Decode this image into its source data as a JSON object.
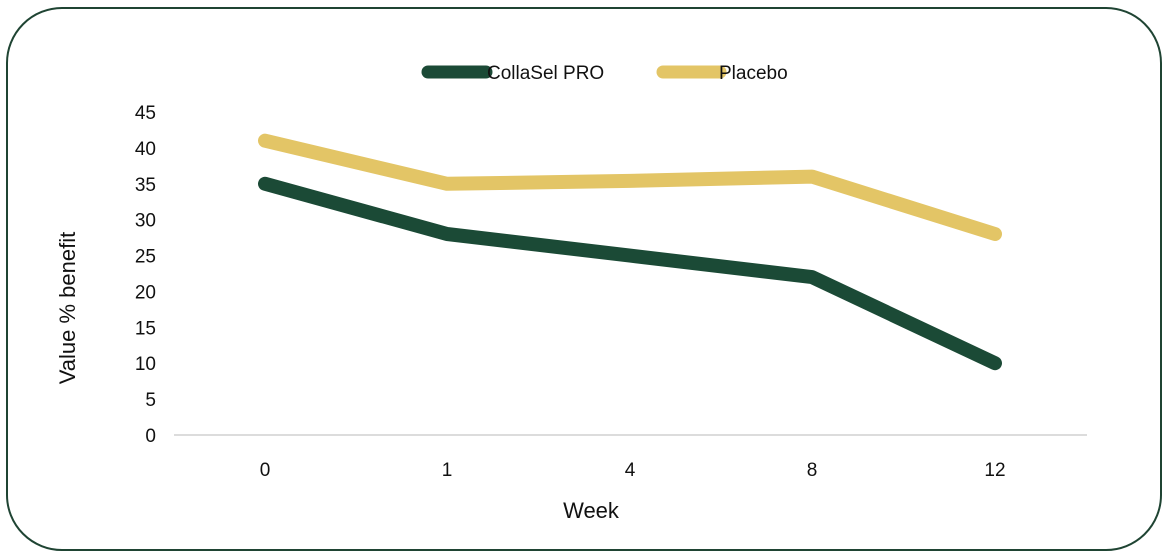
{
  "chart_data": {
    "type": "line",
    "title": "",
    "xlabel": "Week",
    "ylabel": "Value % benefit",
    "categories": [
      "0",
      "1",
      "4",
      "8",
      "12"
    ],
    "ylim": [
      0,
      45
    ],
    "yticks": [
      "0",
      "5",
      "10",
      "15",
      "20",
      "25",
      "30",
      "35",
      "40",
      "45"
    ],
    "grid": false,
    "legend_position": "top",
    "series": [
      {
        "name": "CollaSel PRO",
        "color": "#1b4a36",
        "values": [
          35,
          28,
          25,
          22,
          10
        ]
      },
      {
        "name": "Placebo",
        "color": "#e3c566",
        "values": [
          41,
          35,
          35.4,
          36,
          28
        ]
      }
    ]
  }
}
